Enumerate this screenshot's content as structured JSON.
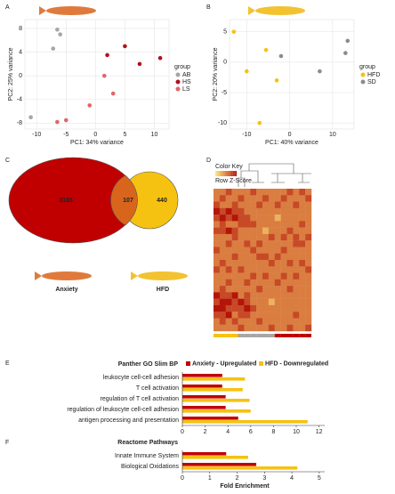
{
  "chart_data": [
    {
      "type": "scatter",
      "panel": "A",
      "x_label": "PC1: 34% variance",
      "y_label": "PC2: 25% variance",
      "legend_title": "group",
      "xlim": [
        -12,
        12.5
      ],
      "ylim": [
        -9,
        9.5
      ],
      "xticks": [
        -10,
        -5,
        0,
        5,
        10
      ],
      "yticks": [
        -8,
        -4,
        0,
        4,
        8
      ],
      "grid": true,
      "series": [
        {
          "name": "AB",
          "color": "#a6a6a6",
          "x": [
            -6.5,
            -6,
            -7.2,
            -11
          ],
          "values": [
            7.8,
            7,
            4.6,
            -7
          ]
        },
        {
          "name": "HS",
          "color": "#b40f1e",
          "x": [
            5,
            2,
            7.5,
            11
          ],
          "values": [
            5,
            3.5,
            2,
            3
          ]
        },
        {
          "name": "LS",
          "color": "#e06666",
          "x": [
            1.5,
            3,
            -1,
            -5,
            -6.5
          ],
          "values": [
            0,
            -3,
            -5,
            -7.5,
            -7.8
          ]
        }
      ]
    },
    {
      "type": "scatter",
      "panel": "B",
      "x_label": "PC1: 40% variance",
      "y_label": "PC2: 20% variance",
      "legend_title": "group",
      "xlim": [
        -14,
        15
      ],
      "ylim": [
        -11,
        7
      ],
      "xticks": [
        -10,
        0,
        10
      ],
      "yticks": [
        -10,
        -5,
        0,
        5
      ],
      "grid": true,
      "series": [
        {
          "name": "HFD",
          "color": "#f5c211",
          "x": [
            -13,
            -5.5,
            -10,
            -3,
            -7
          ],
          "values": [
            5,
            2,
            -1.5,
            -3,
            -10
          ]
        },
        {
          "name": "SD",
          "color": "#8c8c8c",
          "x": [
            -2,
            7,
            13,
            13.5
          ],
          "values": [
            1,
            -1.5,
            1.5,
            3.5
          ]
        }
      ]
    },
    {
      "type": "venn",
      "panel": "C",
      "sets": [
        "Anxiety",
        "HFD"
      ],
      "values": [
        3165,
        107,
        440
      ],
      "colors": [
        "#c00000",
        "#f5c211"
      ]
    },
    {
      "type": "heatmap",
      "panel": "D",
      "key_title": "Color Key",
      "key_label": "Row Z-Score",
      "column_colors": [
        "#f5c211",
        "#f5c211",
        "#f5c211",
        "#f5c211",
        "#a6a6a6",
        "#a6a6a6",
        "#a6a6a6",
        "#a6a6a6",
        "#a6a6a6",
        "#a6a6a6",
        "#c00000",
        "#c00000",
        "#c00000",
        "#c00000",
        "#c00000",
        "#c00000"
      ],
      "values": [
        [
          0,
          0,
          1,
          0,
          0,
          0,
          1,
          0,
          0,
          0,
          0,
          0,
          1,
          0,
          1,
          0
        ],
        [
          0,
          1,
          0,
          0,
          1,
          0,
          0,
          0,
          1,
          0,
          0,
          1,
          0,
          0,
          0,
          1
        ],
        [
          1,
          0,
          0,
          1,
          0,
          0,
          0,
          1,
          0,
          0,
          1,
          0,
          0,
          1,
          0,
          0
        ],
        [
          2,
          1,
          2,
          1,
          1,
          0,
          0,
          0,
          0,
          0,
          0,
          0,
          0,
          0,
          0,
          0
        ],
        [
          1,
          2,
          1,
          2,
          1,
          1,
          0,
          0,
          0,
          0,
          -1,
          0,
          0,
          0,
          0,
          0
        ],
        [
          0,
          1,
          0,
          0,
          1,
          1,
          1,
          0,
          0,
          0,
          0,
          0,
          0,
          0,
          1,
          0
        ],
        [
          1,
          1,
          2,
          1,
          0,
          0,
          0,
          0,
          -1,
          0,
          0,
          0,
          1,
          0,
          0,
          0
        ],
        [
          0,
          0,
          0,
          1,
          0,
          0,
          0,
          0,
          0,
          1,
          0,
          1,
          0,
          1,
          0,
          1
        ],
        [
          0,
          0,
          1,
          0,
          0,
          1,
          0,
          1,
          0,
          0,
          0,
          0,
          0,
          1,
          1,
          0
        ],
        [
          1,
          0,
          0,
          0,
          0,
          0,
          1,
          0,
          0,
          0,
          0,
          1,
          0,
          0,
          0,
          0
        ],
        [
          0,
          0,
          0,
          1,
          0,
          0,
          0,
          1,
          1,
          0,
          1,
          0,
          0,
          0,
          0,
          0
        ],
        [
          0,
          1,
          0,
          0,
          0,
          0,
          0,
          0,
          0,
          1,
          0,
          0,
          1,
          0,
          1,
          0
        ],
        [
          1,
          0,
          1,
          0,
          1,
          0,
          0,
          0,
          0,
          0,
          0,
          0,
          0,
          0,
          0,
          1
        ],
        [
          0,
          0,
          0,
          0,
          0,
          0,
          1,
          0,
          1,
          0,
          0,
          1,
          0,
          1,
          0,
          0
        ],
        [
          0,
          0,
          1,
          0,
          0,
          1,
          0,
          0,
          0,
          0,
          1,
          0,
          0,
          0,
          0,
          0
        ],
        [
          0,
          1,
          0,
          0,
          0,
          0,
          0,
          1,
          0,
          0,
          0,
          0,
          1,
          0,
          0,
          0
        ],
        [
          2,
          1,
          1,
          2,
          0,
          1,
          0,
          0,
          0,
          0,
          0,
          0,
          0,
          0,
          0,
          0
        ],
        [
          1,
          2,
          2,
          1,
          2,
          1,
          0,
          0,
          0,
          -1,
          0,
          0,
          0,
          0,
          0,
          0
        ],
        [
          2,
          2,
          1,
          1,
          1,
          2,
          1,
          0,
          0,
          0,
          0,
          0,
          0,
          0,
          0,
          0
        ],
        [
          1,
          1,
          2,
          0,
          1,
          1,
          0,
          0,
          0,
          0,
          0,
          0,
          0,
          1,
          0,
          0
        ],
        [
          0,
          1,
          0,
          1,
          0,
          0,
          0,
          1,
          0,
          0,
          0,
          0,
          0,
          0,
          0,
          0
        ],
        [
          0,
          0,
          0,
          0,
          1,
          0,
          0,
          0,
          0,
          1,
          0,
          0,
          1,
          0,
          0,
          1
        ]
      ]
    },
    {
      "type": "hbar",
      "panel": "E",
      "title": "Panther GO Slim BP",
      "xlim": [
        0,
        12.5
      ],
      "xticks": [
        0,
        2,
        4,
        6,
        8,
        10,
        12
      ],
      "categories": [
        "leukocyte cell-cell adhesion",
        "T cell activation",
        "regulation of T cell activation",
        "regulation of leukocyte cell-cell adhesion",
        "antigen processing and presentation"
      ],
      "series": [
        {
          "name": "Anxiety - Upregulated",
          "color": "#c00000",
          "values": [
            3.5,
            3.5,
            3.8,
            3.8,
            4.9
          ]
        },
        {
          "name": "HFD - Downregulated",
          "color": "#f5c211",
          "values": [
            5.5,
            5.3,
            5.9,
            6.0,
            11
          ]
        }
      ]
    },
    {
      "type": "hbar",
      "panel": "F",
      "title": "Reactome Pathways",
      "x_label": "Fold Enrichment",
      "xlim": [
        0,
        5.2
      ],
      "xticks": [
        0,
        1,
        2,
        3,
        4,
        5
      ],
      "categories": [
        "Innate Immune System",
        "Biological Oxidations"
      ],
      "series": [
        {
          "color": "#c00000",
          "values": [
            1.6,
            2.7
          ]
        },
        {
          "color": "#f5c211",
          "values": [
            2.4,
            4.2
          ]
        }
      ]
    }
  ]
}
